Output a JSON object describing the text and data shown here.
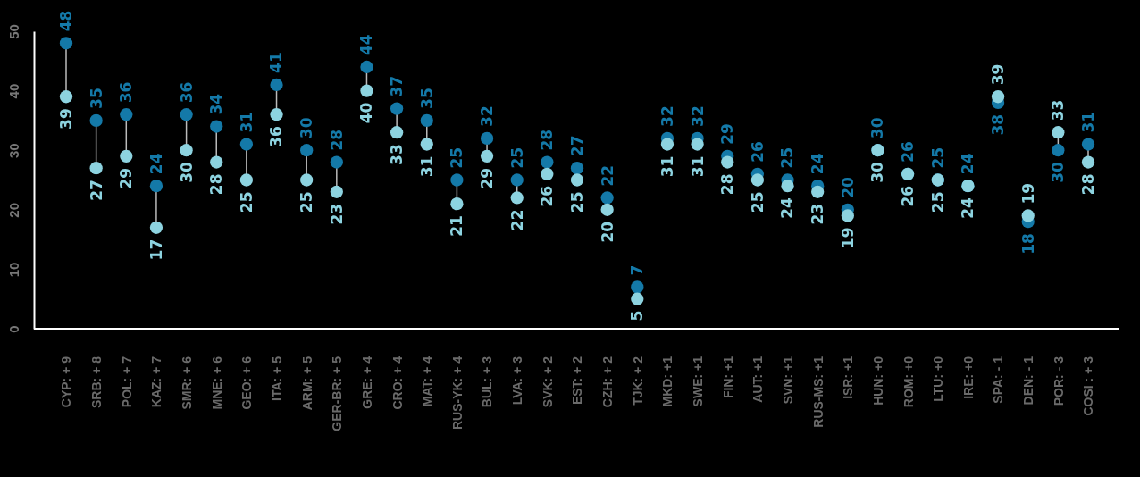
{
  "chart_data": {
    "type": "scatter",
    "categories": [
      "CYP: + 9",
      "SRB: + 8",
      "POL: + 7",
      "KAZ: + 7",
      "SMR: + 6",
      "MNE: + 6",
      "GEO: + 6",
      "ITA: + 5",
      "ARM: + 5",
      "GER-BR: + 5",
      "GRE: + 4",
      "CRO: + 4",
      "MAT: + 4",
      "RUS-YK: + 4",
      "BUL: + 3",
      "LVA: + 3",
      "SVK: + 2",
      "EST: + 2",
      "CZH: + 2",
      "TJK: + 2",
      "MKD: +1",
      "SWE: +1",
      "FIN: +1",
      "AUT: +1",
      "SVN: +1",
      "RUS-MS: +1",
      "ISR: +1",
      "HUN: +0",
      "ROM: +0",
      "LTU: +0",
      "IRE: +0",
      "SPA: - 1",
      "DEN: - 1",
      "POR: - 3",
      "COSI : + 3"
    ],
    "series": [
      {
        "color": "#1479a8",
        "values": [
          48,
          35,
          36,
          24,
          36,
          34,
          31,
          41,
          30,
          28,
          44,
          37,
          35,
          25,
          32,
          25,
          28,
          27,
          22,
          7,
          32,
          32,
          29,
          26,
          25,
          24,
          20,
          30,
          26,
          25,
          24,
          38,
          18,
          30,
          31
        ]
      },
      {
        "color": "#8dd3e0",
        "values": [
          39,
          27,
          29,
          17,
          30,
          28,
          25,
          36,
          25,
          23,
          40,
          33,
          31,
          21,
          29,
          22,
          26,
          25,
          20,
          5,
          31,
          31,
          28,
          25,
          24,
          23,
          19,
          30,
          26,
          25,
          24,
          39,
          19,
          33,
          28
        ]
      }
    ],
    "ylim": [
      0,
      50
    ],
    "yticks": [
      0,
      10,
      20,
      30,
      40,
      50
    ],
    "data_labels": true,
    "marker": "circle"
  }
}
